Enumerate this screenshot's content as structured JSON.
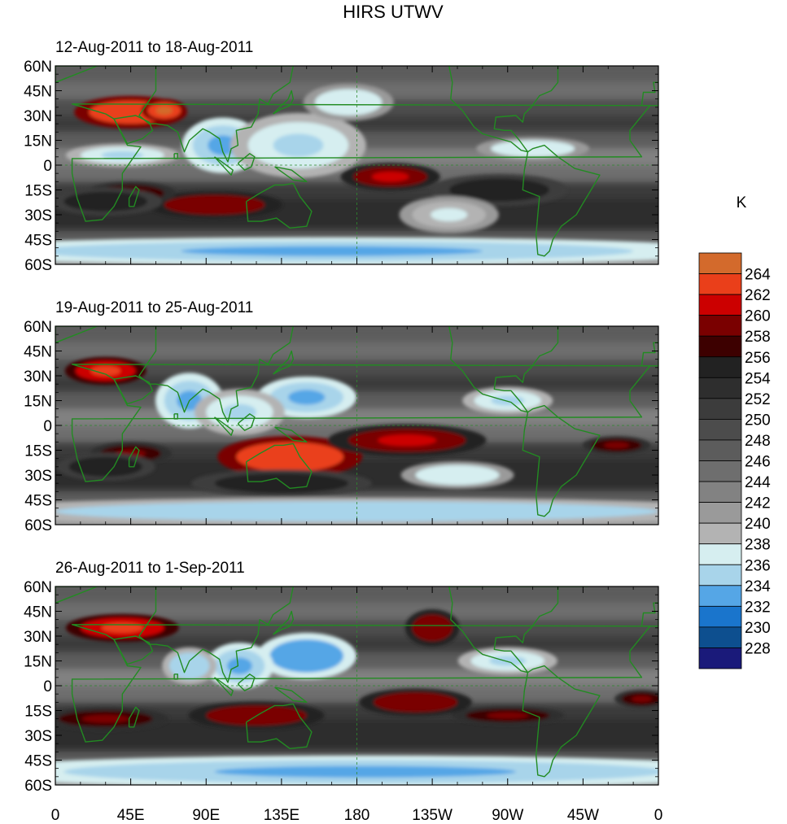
{
  "chart_data": {
    "type": "heatmap",
    "title": "HIRS UTWV",
    "colorbar": {
      "unit_label": "K",
      "levels": [
        228,
        230,
        232,
        234,
        236,
        238,
        240,
        242,
        244,
        246,
        248,
        250,
        252,
        254,
        256,
        258,
        260,
        262,
        264
      ],
      "colors": [
        "#1a1a7a",
        "#0d4f8f",
        "#1a75cc",
        "#55a6e6",
        "#a8d4ea",
        "#d6eef0",
        "#b3b3b3",
        "#9a9a9a",
        "#828282",
        "#6e6e6e",
        "#5c5c5c",
        "#4c4c4c",
        "#3c3c3c",
        "#2e2e2e",
        "#222222",
        "#3d0000",
        "#7a0000",
        "#cc0000",
        "#ea3f1a",
        "#d36a2c"
      ]
    },
    "x_axis": {
      "ticks": [
        "0",
        "45E",
        "90E",
        "135E",
        "180",
        "135W",
        "90W",
        "45W",
        "0"
      ],
      "range_deg_east": [
        0,
        360
      ]
    },
    "y_axis": {
      "ticks": [
        "60N",
        "45N",
        "30N",
        "15N",
        "0",
        "15S",
        "30S",
        "45S",
        "60S"
      ],
      "range_deg": [
        60,
        -60
      ]
    },
    "panels": [
      {
        "title": "12-Aug-2011 to 18-Aug-2011",
        "features": [
          {
            "lon": 45,
            "lat": 32,
            "rx": 25,
            "ry": 7,
            "value": 262
          },
          {
            "lon": 65,
            "lat": 33,
            "rx": 10,
            "ry": 5,
            "value": 263
          },
          {
            "lon": 200,
            "lat": -7,
            "rx": 22,
            "ry": 6,
            "value": 259
          },
          {
            "lon": 95,
            "lat": -24,
            "rx": 30,
            "ry": 6,
            "value": 258
          },
          {
            "lon": 45,
            "lat": -17,
            "rx": 20,
            "ry": 5,
            "value": 257
          },
          {
            "lon": 265,
            "lat": -15,
            "rx": 30,
            "ry": 7,
            "value": 254
          },
          {
            "lon": 30,
            "lat": -22,
            "rx": 25,
            "ry": 6,
            "value": 254
          },
          {
            "lon": 100,
            "lat": 12,
            "rx": 18,
            "ry": 12,
            "value": 234
          },
          {
            "lon": 145,
            "lat": 12,
            "rx": 30,
            "ry": 14,
            "value": 236
          },
          {
            "lon": 175,
            "lat": 38,
            "rx": 20,
            "ry": 8,
            "value": 237
          },
          {
            "lon": 40,
            "lat": 6,
            "rx": 25,
            "ry": 5,
            "value": 236
          },
          {
            "lon": 285,
            "lat": 10,
            "rx": 25,
            "ry": 5,
            "value": 237
          },
          {
            "lon": 235,
            "lat": -30,
            "rx": 22,
            "ry": 8,
            "value": 238
          },
          {
            "lon": 165,
            "lat": -52,
            "rx": 180,
            "ry": 6,
            "value": 234
          }
        ]
      },
      {
        "title": "19-Aug-2011 to 25-Aug-2011",
        "features": [
          {
            "lon": 30,
            "lat": 33,
            "rx": 18,
            "ry": 6,
            "value": 261
          },
          {
            "lon": 140,
            "lat": -19,
            "rx": 32,
            "ry": 9,
            "value": 262
          },
          {
            "lon": 210,
            "lat": -9,
            "rx": 35,
            "ry": 7,
            "value": 259
          },
          {
            "lon": 45,
            "lat": -17,
            "rx": 18,
            "ry": 5,
            "value": 257
          },
          {
            "lon": 335,
            "lat": -12,
            "rx": 15,
            "ry": 4,
            "value": 257
          },
          {
            "lon": 135,
            "lat": -35,
            "rx": 40,
            "ry": 6,
            "value": 254
          },
          {
            "lon": 30,
            "lat": -25,
            "rx": 22,
            "ry": 6,
            "value": 254
          },
          {
            "lon": 80,
            "lat": 15,
            "rx": 15,
            "ry": 12,
            "value": 234
          },
          {
            "lon": 150,
            "lat": 17,
            "rx": 22,
            "ry": 9,
            "value": 234
          },
          {
            "lon": 110,
            "lat": 8,
            "rx": 20,
            "ry": 10,
            "value": 236
          },
          {
            "lon": 270,
            "lat": 15,
            "rx": 20,
            "ry": 6,
            "value": 236
          },
          {
            "lon": 240,
            "lat": -30,
            "rx": 25,
            "ry": 6,
            "value": 237
          },
          {
            "lon": 180,
            "lat": -52,
            "rx": 180,
            "ry": 6,
            "value": 235
          }
        ]
      },
      {
        "title": "26-Aug-2011 to 1-Sep-2011",
        "features": [
          {
            "lon": 40,
            "lat": 35,
            "rx": 25,
            "ry": 6,
            "value": 261
          },
          {
            "lon": 120,
            "lat": -18,
            "rx": 30,
            "ry": 6,
            "value": 258
          },
          {
            "lon": 215,
            "lat": -10,
            "rx": 25,
            "ry": 6,
            "value": 258
          },
          {
            "lon": 225,
            "lat": 35,
            "rx": 12,
            "ry": 8,
            "value": 258
          },
          {
            "lon": 30,
            "lat": -20,
            "rx": 28,
            "ry": 5,
            "value": 257
          },
          {
            "lon": 270,
            "lat": -18,
            "rx": 25,
            "ry": 4,
            "value": 257
          },
          {
            "lon": 350,
            "lat": -8,
            "rx": 12,
            "ry": 4,
            "value": 257
          },
          {
            "lon": 150,
            "lat": 18,
            "rx": 22,
            "ry": 10,
            "value": 233
          },
          {
            "lon": 110,
            "lat": 12,
            "rx": 15,
            "ry": 10,
            "value": 234
          },
          {
            "lon": 80,
            "lat": 12,
            "rx": 12,
            "ry": 8,
            "value": 235
          },
          {
            "lon": 270,
            "lat": 15,
            "rx": 22,
            "ry": 6,
            "value": 236
          },
          {
            "lon": 185,
            "lat": -52,
            "rx": 180,
            "ry": 7,
            "value": 234
          }
        ]
      }
    ]
  }
}
